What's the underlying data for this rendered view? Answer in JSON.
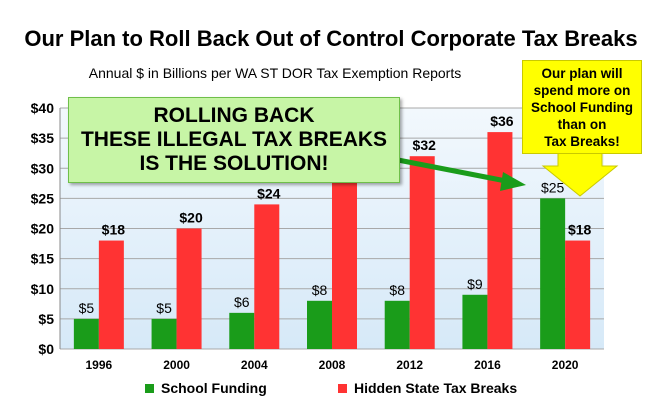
{
  "title": "Our Plan to Roll Back Out of Control Corporate Tax Breaks",
  "subtitle": "Annual $ in Billions per WA ST DOR Tax Exemption Reports",
  "callout": {
    "lines": [
      "ROLLING BACK",
      "THESE ILLEGAL TAX BREAKS",
      "IS THE SOLUTION!"
    ],
    "background": "#c7f5a6",
    "arrow_color": "#1a9c1a"
  },
  "plan_note": {
    "lines": [
      "Our plan will",
      "spend more on",
      "School Funding",
      "than on",
      "Tax Breaks!"
    ],
    "background": "#ffff00"
  },
  "chart_data": {
    "type": "bar",
    "categories": [
      "1996",
      "2000",
      "2004",
      "2008",
      "2012",
      "2016",
      "2020"
    ],
    "series": [
      {
        "name": "School Funding",
        "values": [
          5,
          5,
          6,
          8,
          8,
          9,
          25
        ],
        "labels": [
          "$5",
          "$5",
          "$6",
          "$8",
          "$8",
          "$9",
          "$25"
        ],
        "color": "#1a9c1a"
      },
      {
        "name": "Hidden State Tax Breaks",
        "values": [
          18,
          20,
          24,
          29,
          32,
          36,
          18
        ],
        "labels": [
          "$18",
          "$20",
          "$24",
          "",
          "$32",
          "$36",
          "$18"
        ],
        "color": "#ff3333"
      }
    ],
    "ylim": [
      0,
      40
    ],
    "yticks": [
      "$0",
      "$5",
      "$10",
      "$15",
      "$20",
      "$25",
      "$30",
      "$35",
      "$40"
    ],
    "grid": true,
    "plot_background": "#d6e9f8",
    "legend_position": "bottom"
  }
}
